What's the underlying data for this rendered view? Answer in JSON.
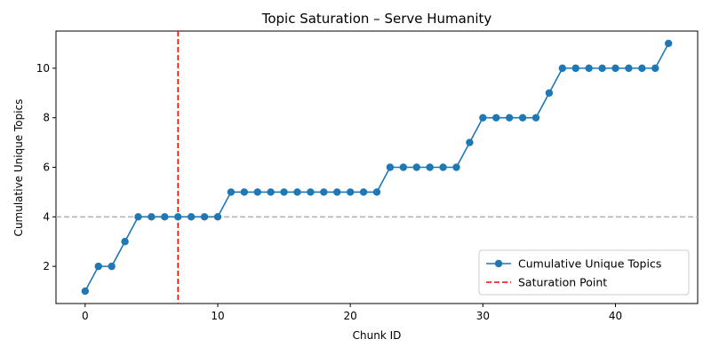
{
  "chart_data": {
    "type": "line",
    "title": "Topic Saturation – Serve Humanity",
    "xlabel": "Chunk ID",
    "ylabel": "Cumulative Unique Topics",
    "xlim": [
      -2.2,
      46.2
    ],
    "ylim": [
      0.5,
      11.5
    ],
    "xticks": [
      0,
      10,
      20,
      30,
      40
    ],
    "yticks": [
      2,
      4,
      6,
      8,
      10
    ],
    "grid": false,
    "legend_position": "lower-right",
    "series": [
      {
        "name": "Cumulative Unique Topics",
        "color": "#1f77b4",
        "marker": "circle",
        "x": [
          0,
          1,
          2,
          3,
          4,
          5,
          6,
          7,
          8,
          9,
          10,
          11,
          12,
          13,
          14,
          15,
          16,
          17,
          18,
          19,
          20,
          21,
          22,
          23,
          24,
          25,
          26,
          27,
          28,
          29,
          30,
          31,
          32,
          33,
          34,
          35,
          36,
          37,
          38,
          39,
          40,
          41,
          42,
          43,
          44
        ],
        "y": [
          1,
          2,
          2,
          3,
          4,
          4,
          4,
          4,
          4,
          4,
          4,
          5,
          5,
          5,
          5,
          5,
          5,
          5,
          5,
          5,
          5,
          5,
          5,
          6,
          6,
          6,
          6,
          6,
          6,
          7,
          8,
          8,
          8,
          8,
          8,
          9,
          10,
          10,
          10,
          10,
          10,
          10,
          10,
          10,
          11
        ]
      }
    ],
    "reference_lines": [
      {
        "orientation": "vertical",
        "value": 7,
        "name": "Saturation Point",
        "color": "#ff0000",
        "style": "dashed"
      },
      {
        "orientation": "horizontal",
        "value": 4,
        "color": "#b0b0b0",
        "style": "dashed"
      }
    ]
  }
}
